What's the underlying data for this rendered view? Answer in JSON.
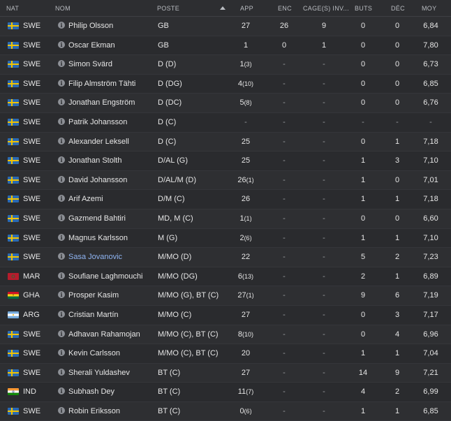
{
  "header": {
    "nat": "NAT",
    "nom": "NOM",
    "poste": "POSTE",
    "app": "APP",
    "enc": "ENC",
    "cage": "CAGE(S) INV...",
    "buts": "BUTS",
    "dec": "DÉC",
    "moy": "MOY"
  },
  "flags": {
    "SWE": "sweden-flag",
    "MAR": "morocco-flag",
    "GHA": "ghana-flag",
    "ARG": "argentina-flag",
    "IND": "india-flag"
  },
  "rows": [
    {
      "nat": "SWE",
      "name": "Philip Olsson",
      "pos": "GB",
      "app": "27",
      "app_sub": "",
      "enc": "26",
      "cage": "9",
      "buts": "0",
      "dec": "0",
      "moy": "6,84"
    },
    {
      "nat": "SWE",
      "name": "Oscar Ekman",
      "pos": "GB",
      "app": "1",
      "app_sub": "",
      "enc": "0",
      "cage": "1",
      "buts": "0",
      "dec": "0",
      "moy": "7,80"
    },
    {
      "nat": "SWE",
      "name": "Simon Svärd",
      "pos": "D (D)",
      "app": "1",
      "app_sub": "(3)",
      "enc": "-",
      "cage": "-",
      "buts": "0",
      "dec": "0",
      "moy": "6,73"
    },
    {
      "nat": "SWE",
      "name": "Filip Almström Tähti",
      "pos": "D (DG)",
      "app": "4",
      "app_sub": "(10)",
      "enc": "-",
      "cage": "-",
      "buts": "0",
      "dec": "0",
      "moy": "6,85"
    },
    {
      "nat": "SWE",
      "name": "Jonathan Engström",
      "pos": "D (DC)",
      "app": "5",
      "app_sub": "(8)",
      "enc": "-",
      "cage": "-",
      "buts": "0",
      "dec": "0",
      "moy": "6,76"
    },
    {
      "nat": "SWE",
      "name": "Patrik Johansson",
      "pos": "D (C)",
      "app": "-",
      "app_sub": "",
      "enc": "-",
      "cage": "-",
      "buts": "-",
      "dec": "-",
      "moy": "-"
    },
    {
      "nat": "SWE",
      "name": "Alexander Leksell",
      "pos": "D (C)",
      "app": "25",
      "app_sub": "",
      "enc": "-",
      "cage": "-",
      "buts": "0",
      "dec": "1",
      "moy": "7,18"
    },
    {
      "nat": "SWE",
      "name": "Jonathan Stolth",
      "pos": "D/AL (G)",
      "app": "25",
      "app_sub": "",
      "enc": "-",
      "cage": "-",
      "buts": "1",
      "dec": "3",
      "moy": "7,10"
    },
    {
      "nat": "SWE",
      "name": "David Johansson",
      "pos": "D/AL/M (D)",
      "app": "26",
      "app_sub": "(1)",
      "enc": "-",
      "cage": "-",
      "buts": "1",
      "dec": "0",
      "moy": "7,01"
    },
    {
      "nat": "SWE",
      "name": "Arif Azemi",
      "pos": "D/M (C)",
      "app": "26",
      "app_sub": "",
      "enc": "-",
      "cage": "-",
      "buts": "1",
      "dec": "1",
      "moy": "7,18"
    },
    {
      "nat": "SWE",
      "name": "Gazmend Bahtiri",
      "pos": "MD, M (C)",
      "app": "1",
      "app_sub": "(1)",
      "enc": "-",
      "cage": "-",
      "buts": "0",
      "dec": "0",
      "moy": "6,60"
    },
    {
      "nat": "SWE",
      "name": "Magnus Karlsson",
      "pos": "M (G)",
      "app": "2",
      "app_sub": "(6)",
      "enc": "-",
      "cage": "-",
      "buts": "1",
      "dec": "1",
      "moy": "7,10"
    },
    {
      "nat": "SWE",
      "name": "Sasa Jovanovic",
      "pos": "M/MO (D)",
      "app": "22",
      "app_sub": "",
      "enc": "-",
      "cage": "-",
      "buts": "5",
      "dec": "2",
      "moy": "7,23",
      "link": true
    },
    {
      "nat": "MAR",
      "name": "Soufiane Laghmouchi",
      "pos": "M/MO (DG)",
      "app": "6",
      "app_sub": "(13)",
      "enc": "-",
      "cage": "-",
      "buts": "2",
      "dec": "1",
      "moy": "6,89"
    },
    {
      "nat": "GHA",
      "name": "Prosper Kasim",
      "pos": "M/MO (G), BT (C)",
      "app": "27",
      "app_sub": "(1)",
      "enc": "-",
      "cage": "-",
      "buts": "9",
      "dec": "6",
      "moy": "7,19"
    },
    {
      "nat": "ARG",
      "name": "Cristian Martín",
      "pos": "M/MO (C)",
      "app": "27",
      "app_sub": "",
      "enc": "-",
      "cage": "-",
      "buts": "0",
      "dec": "3",
      "moy": "7,17"
    },
    {
      "nat": "SWE",
      "name": "Adhavan Rahamojan",
      "pos": "M/MO (C), BT (C)",
      "app": "8",
      "app_sub": "(10)",
      "enc": "-",
      "cage": "-",
      "buts": "0",
      "dec": "4",
      "moy": "6,96"
    },
    {
      "nat": "SWE",
      "name": "Kevin Carlsson",
      "pos": "M/MO (C), BT (C)",
      "app": "20",
      "app_sub": "",
      "enc": "-",
      "cage": "-",
      "buts": "1",
      "dec": "1",
      "moy": "7,04"
    },
    {
      "nat": "SWE",
      "name": "Sherali Yuldashev",
      "pos": "BT (C)",
      "app": "27",
      "app_sub": "",
      "enc": "-",
      "cage": "-",
      "buts": "14",
      "dec": "9",
      "moy": "7,21"
    },
    {
      "nat": "IND",
      "name": "Subhash Dey",
      "pos": "BT (C)",
      "app": "11",
      "app_sub": "(7)",
      "enc": "-",
      "cage": "-",
      "buts": "4",
      "dec": "2",
      "moy": "6,99"
    },
    {
      "nat": "SWE",
      "name": "Robin Eriksson",
      "pos": "BT (C)",
      "app": "0",
      "app_sub": "(6)",
      "enc": "-",
      "cage": "-",
      "buts": "1",
      "dec": "1",
      "moy": "6,85"
    }
  ]
}
